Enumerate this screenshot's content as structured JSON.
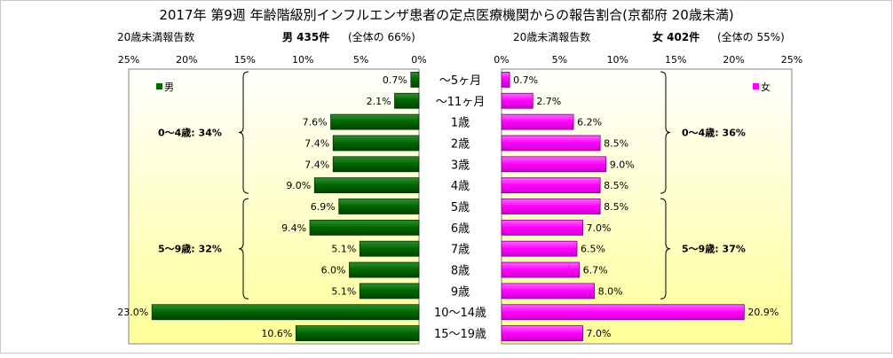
{
  "title": "2017年 第9週 年齢階級別インフルエンザ患者の定点医療機関からの報告割合(京都府 20歳未満)",
  "colors": {
    "male": "#006400",
    "female": "#ff00ff",
    "panel_top": "#ffffff",
    "panel_bottom": "#ffff99"
  },
  "chart_data": {
    "type": "bar",
    "orientation": "horizontal",
    "layout": "population-pyramid",
    "categories": [
      "～5ヶ月",
      "～11ヶ月",
      "1歳",
      "2歳",
      "3歳",
      "4歳",
      "5歳",
      "6歳",
      "7歳",
      "8歳",
      "9歳",
      "10～14歳",
      "15～19歳"
    ],
    "value_unit": "%",
    "xlim": [
      0,
      25
    ],
    "ticks": [
      25,
      20,
      15,
      10,
      5,
      0
    ],
    "tick_labels_left": [
      "25%",
      "20%",
      "15%",
      "10%",
      "5%",
      "0%"
    ],
    "tick_labels_right": [
      "0%",
      "5%",
      "10%",
      "15%",
      "20%",
      "25%"
    ],
    "series": [
      {
        "name": "男",
        "side": "left",
        "values": [
          0.7,
          2.1,
          7.6,
          7.4,
          7.4,
          9.0,
          6.9,
          9.4,
          5.1,
          6.0,
          5.1,
          23.0,
          10.6
        ],
        "value_labels": [
          "0.7%",
          "2.1%",
          "7.6%",
          "7.4%",
          "7.4%",
          "9.0%",
          "6.9%",
          "9.4%",
          "5.1%",
          "6.0%",
          "5.1%",
          "23.0%",
          "10.6%"
        ],
        "subtitle": {
          "left": "20歳未満報告数",
          "center": "男  435件",
          "right": "(全体の  66%)"
        },
        "groups": [
          {
            "label": "0～4歳: 34%",
            "from": 0,
            "to": 5
          },
          {
            "label": "5～9歳: 32%",
            "from": 6,
            "to": 10
          }
        ]
      },
      {
        "name": "女",
        "side": "right",
        "values": [
          0.7,
          2.7,
          6.2,
          8.5,
          9.0,
          8.5,
          8.5,
          7.0,
          6.5,
          6.7,
          8.0,
          20.9,
          7.0
        ],
        "value_labels": [
          "0.7%",
          "2.7%",
          "6.2%",
          "8.5%",
          "9.0%",
          "8.5%",
          "8.5%",
          "7.0%",
          "6.5%",
          "6.7%",
          "8.0%",
          "20.9%",
          "7.0%"
        ],
        "subtitle": {
          "left": "20歳未満報告数",
          "center": "女  402件",
          "right": "(全体の  55%)"
        },
        "groups": [
          {
            "label": "0～4歳: 36%",
            "from": 0,
            "to": 5
          },
          {
            "label": "5～9歳: 37%",
            "from": 6,
            "to": 10
          }
        ]
      }
    ],
    "grid": false,
    "legend": "inside-top"
  }
}
